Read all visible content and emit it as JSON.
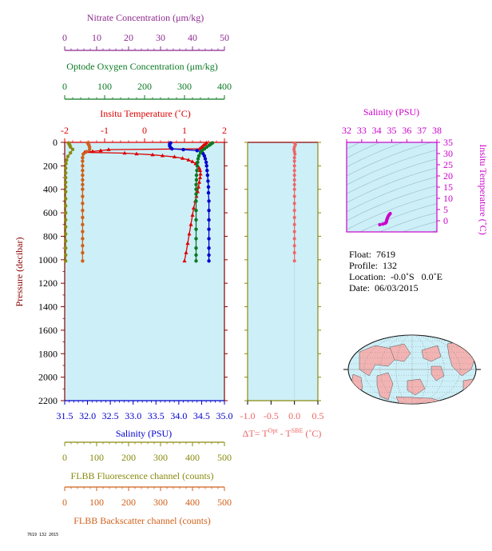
{
  "colors": {
    "nitrate": "#8e2a8e",
    "oxygen": "#0a7a22",
    "temperature": "#dd0000",
    "salinity": "#0000cc",
    "fluorescence": "#8a8a10",
    "backscatter": "#d0601a",
    "delta_t": "#ee6666",
    "plot_bg": "#cdeff8",
    "ts_axis": "#cc00cc",
    "land": "#f2b3b3",
    "ocean": "#cdeff8"
  },
  "info": {
    "float": "Float:  7619",
    "profile": "Profile:  132",
    "location": "Location:  -0.0˚S   0.0˚E",
    "date": "Date:  06/03/2015"
  },
  "footer_tag": "7619 132 2015",
  "chart_data": [
    {
      "type": "line",
      "panel": "main-profile",
      "ylabel": "Pressure (decibar)",
      "ylim": [
        2200,
        0
      ],
      "yticks": [
        0,
        200,
        400,
        600,
        800,
        1000,
        1200,
        1400,
        1600,
        1800,
        2000,
        2200
      ],
      "axes": {
        "nitrate": {
          "label": "Nitrate Concentration (μm/kg)",
          "range": [
            0,
            50
          ],
          "ticks": [
            0,
            10,
            20,
            30,
            40,
            50
          ]
        },
        "oxygen": {
          "label": "Optode Oxygen Concentration (μm/kg)",
          "range": [
            0,
            400
          ],
          "ticks": [
            0,
            100,
            200,
            300,
            400
          ]
        },
        "temperature": {
          "label": "Insitu Temperature (˚C)",
          "range": [
            -2,
            2
          ],
          "ticks": [
            -2,
            -1,
            0,
            1,
            2
          ]
        },
        "salinity": {
          "label": "Salinity (PSU)",
          "range": [
            31.5,
            35.0
          ],
          "ticks": [
            31.5,
            32.0,
            32.5,
            33.0,
            33.5,
            34.0,
            34.5,
            35.0
          ]
        },
        "fluorescence": {
          "label": "FLBB Fluorescence channel (counts)",
          "range": [
            0,
            500
          ],
          "ticks": [
            0,
            100,
            200,
            300,
            400,
            500
          ]
        },
        "backscatter": {
          "label": "FLBB Backscatter channel (counts)",
          "range": [
            0,
            500
          ],
          "ticks": [
            0,
            100,
            200,
            300,
            400,
            500
          ]
        }
      },
      "series": [
        {
          "name": "Insitu Temperature (˚C)",
          "axis": "temperature",
          "points": [
            [
              1.55,
              5
            ],
            [
              1.52,
              15
            ],
            [
              1.48,
              25
            ],
            [
              1.45,
              35
            ],
            [
              1.42,
              45
            ],
            [
              1.38,
              55
            ],
            [
              -0.9,
              62
            ],
            [
              -1.1,
              70
            ],
            [
              -1.3,
              78
            ],
            [
              -1.5,
              85
            ],
            [
              -0.5,
              92
            ],
            [
              -0.2,
              98
            ],
            [
              0.2,
              106
            ],
            [
              0.45,
              114
            ],
            [
              0.75,
              124
            ],
            [
              0.95,
              136
            ],
            [
              1.1,
              150
            ],
            [
              1.2,
              165
            ],
            [
              1.28,
              182
            ],
            [
              1.33,
              200
            ],
            [
              1.37,
              220
            ],
            [
              1.39,
              240
            ],
            [
              1.4,
              270
            ],
            [
              1.39,
              300
            ],
            [
              1.37,
              340
            ],
            [
              1.35,
              380
            ],
            [
              1.33,
              420
            ],
            [
              1.3,
              460
            ],
            [
              1.27,
              500
            ],
            [
              1.23,
              560
            ],
            [
              1.2,
              620
            ],
            [
              1.16,
              700
            ],
            [
              1.12,
              780
            ],
            [
              1.08,
              860
            ],
            [
              1.04,
              940
            ],
            [
              1.0,
              1010
            ]
          ]
        },
        {
          "name": "Salinity (PSU)",
          "axis": "salinity",
          "points": [
            [
              33.82,
              5
            ],
            [
              33.8,
              15
            ],
            [
              33.8,
              30
            ],
            [
              33.82,
              45
            ],
            [
              33.85,
              55
            ],
            [
              34.1,
              62
            ],
            [
              34.4,
              70
            ],
            [
              34.5,
              80
            ],
            [
              34.53,
              95
            ],
            [
              34.56,
              115
            ],
            [
              34.58,
              140
            ],
            [
              34.6,
              170
            ],
            [
              34.61,
              200
            ],
            [
              34.62,
              240
            ],
            [
              34.63,
              280
            ],
            [
              34.64,
              330
            ],
            [
              34.65,
              380
            ],
            [
              34.65,
              430
            ],
            [
              34.66,
              500
            ],
            [
              34.66,
              580
            ],
            [
              34.66,
              660
            ],
            [
              34.66,
              740
            ],
            [
              34.66,
              820
            ],
            [
              34.66,
              900
            ],
            [
              34.66,
              960
            ],
            [
              34.66,
              1010
            ]
          ]
        },
        {
          "name": "Optode Oxygen Concentration (μm/kg)",
          "axis": "oxygen",
          "points": [
            [
              370,
              5
            ],
            [
              366,
              15
            ],
            [
              362,
              25
            ],
            [
              356,
              40
            ],
            [
              350,
              55
            ],
            [
              344,
              70
            ],
            [
              340,
              90
            ],
            [
              336,
              115
            ],
            [
              334,
              140
            ],
            [
              333,
              170
            ],
            [
              332,
              200
            ],
            [
              331,
              240
            ],
            [
              330,
              280
            ],
            [
              330,
              320
            ],
            [
              329,
              360
            ],
            [
              329,
              400
            ],
            [
              329,
              440
            ],
            [
              329,
              500
            ],
            [
              329,
              580
            ],
            [
              329,
              660
            ],
            [
              329,
              740
            ],
            [
              329,
              820
            ],
            [
              329,
              900
            ],
            [
              329,
              960
            ],
            [
              329,
              1010
            ]
          ]
        },
        {
          "name": "FLBB Fluorescence channel (counts)",
          "axis": "fluorescence",
          "points": [
            [
              12,
              5
            ],
            [
              14,
              15
            ],
            [
              16,
              25
            ],
            [
              18,
              40
            ],
            [
              25,
              60
            ],
            [
              18,
              90
            ],
            [
              10,
              120
            ],
            [
              6,
              150
            ],
            [
              4,
              180
            ],
            [
              3,
              220
            ],
            [
              3,
              260
            ],
            [
              3,
              300
            ],
            [
              3,
              340
            ],
            [
              3,
              380
            ],
            [
              3,
              420
            ],
            [
              3,
              480
            ],
            [
              3,
              540
            ],
            [
              3,
              600
            ],
            [
              3,
              660
            ],
            [
              3,
              720
            ],
            [
              3,
              780
            ],
            [
              3,
              840
            ],
            [
              3,
              900
            ],
            [
              3,
              960
            ],
            [
              3,
              1010
            ]
          ]
        },
        {
          "name": "FLBB Backscatter channel (counts)",
          "axis": "backscatter",
          "points": [
            [
              72,
              5
            ],
            [
              74,
              15
            ],
            [
              76,
              25
            ],
            [
              78,
              40
            ],
            [
              78,
              60
            ],
            [
              68,
              80
            ],
            [
              58,
              100
            ],
            [
              56,
              130
            ],
            [
              56,
              160
            ],
            [
              56,
              200
            ],
            [
              56,
              240
            ],
            [
              56,
              280
            ],
            [
              56,
              320
            ],
            [
              56,
              360
            ],
            [
              56,
              400
            ],
            [
              56,
              460
            ],
            [
              56,
              520
            ],
            [
              56,
              580
            ],
            [
              56,
              640
            ],
            [
              56,
              700
            ],
            [
              56,
              760
            ],
            [
              56,
              820
            ],
            [
              56,
              880
            ],
            [
              56,
              940
            ],
            [
              56,
              1010
            ]
          ]
        }
      ]
    },
    {
      "type": "line",
      "panel": "delta-t",
      "xlabel": "ΔT= T",
      "xlabel_sup1": "Opt",
      "xlabel_mid": " - T",
      "xlabel_sup2": "SBE",
      "xlabel_tail": " (˚C)",
      "xlim": [
        -1.0,
        0.5
      ],
      "xticks": [
        -1.0,
        -0.5,
        0.0,
        0.5
      ],
      "ylim": [
        2200,
        0
      ],
      "series": [
        {
          "points": [
            [
              0.0,
              5
            ],
            [
              0.02,
              20
            ],
            [
              0.0,
              40
            ],
            [
              -0.01,
              60
            ],
            [
              0.0,
              80
            ],
            [
              0.01,
              100
            ],
            [
              0.0,
              130
            ],
            [
              0.0,
              160
            ],
            [
              0.0,
              200
            ],
            [
              0.0,
              240
            ],
            [
              0.0,
              280
            ],
            [
              0.0,
              320
            ],
            [
              0.0,
              360
            ],
            [
              0.0,
              400
            ],
            [
              0.0,
              460
            ],
            [
              0.0,
              520
            ],
            [
              0.0,
              580
            ],
            [
              0.0,
              640
            ],
            [
              0.0,
              700
            ],
            [
              0.0,
              760
            ],
            [
              0.0,
              820
            ],
            [
              0.0,
              880
            ],
            [
              0.0,
              940
            ],
            [
              0.0,
              1010
            ]
          ]
        }
      ]
    },
    {
      "type": "scatter",
      "panel": "ts-diagram",
      "title": "Salinity (PSU)",
      "ylabel": "Insitu Temperature (˚C)",
      "xlim": [
        32,
        38
      ],
      "xticks": [
        32,
        33,
        34,
        35,
        36,
        37,
        38
      ],
      "ylim": [
        -5,
        35
      ],
      "yticks": [
        0,
        5,
        10,
        15,
        20,
        25,
        30,
        35
      ],
      "points": [
        [
          34.2,
          -1.8
        ],
        [
          34.4,
          -1.5
        ],
        [
          34.55,
          -1.2
        ],
        [
          34.62,
          -0.8
        ],
        [
          34.65,
          -0.4
        ],
        [
          34.66,
          0.2
        ],
        [
          34.68,
          0.6
        ],
        [
          34.7,
          1.0
        ],
        [
          34.72,
          1.4
        ],
        [
          34.75,
          1.8
        ],
        [
          34.78,
          2.2
        ],
        [
          34.82,
          2.6
        ],
        [
          34.86,
          2.9
        ],
        [
          34.9,
          3.2
        ]
      ]
    }
  ]
}
